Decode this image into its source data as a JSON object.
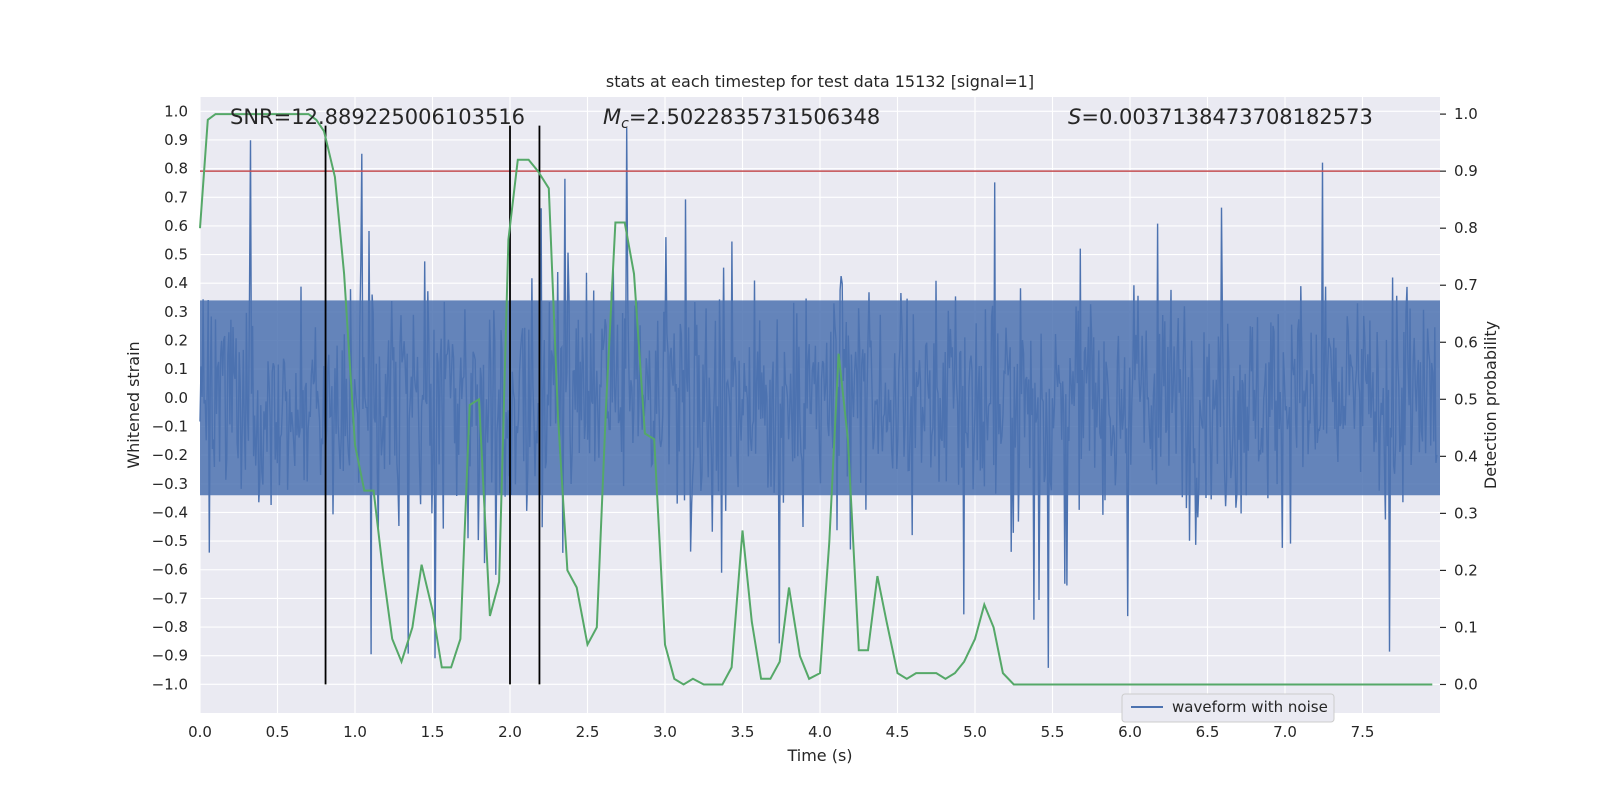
{
  "chart_data": {
    "type": "line",
    "title": "stats at each timestep for test data 15132 [signal=1]",
    "xlabel": "Time (s)",
    "ylabel": "Whitened strain",
    "ylabel_right": "Detection probability",
    "xlim": [
      0.0,
      8.0
    ],
    "ylim": [
      -1.1,
      1.05
    ],
    "ylim_right": [
      -0.05,
      1.03
    ],
    "x_ticks": [
      "0.0",
      "0.5",
      "1.0",
      "1.5",
      "2.0",
      "2.5",
      "3.0",
      "3.5",
      "4.0",
      "4.5",
      "5.0",
      "5.5",
      "6.0",
      "6.5",
      "7.0",
      "7.5"
    ],
    "y_ticks": [
      "−1.0",
      "−0.9",
      "−0.8",
      "−0.7",
      "−0.6",
      "−0.5",
      "−0.4",
      "−0.3",
      "−0.2",
      "−0.1",
      "0.0",
      "0.1",
      "0.2",
      "0.3",
      "0.4",
      "0.5",
      "0.6",
      "0.7",
      "0.8",
      "0.9",
      "1.0"
    ],
    "y_ticks_right": [
      "0.0",
      "0.1",
      "0.2",
      "0.3",
      "0.4",
      "0.5",
      "0.6",
      "0.7",
      "0.8",
      "0.9",
      "1.0"
    ],
    "grid": true,
    "annotations": {
      "snr": "SNR=12.889225006103516",
      "mc": "=2.5022835731506348",
      "mc_symbol": "M",
      "mc_subscript": "c",
      "s": "=0.0037138473708182573",
      "s_symbol": "S"
    },
    "threshold_right": 0.9,
    "vertical_lines_x": [
      0.81,
      2.0,
      2.19
    ],
    "vertical_lines_yrange": [
      -1.0,
      0.95
    ],
    "legend": {
      "label": "waveform with noise",
      "position": "lower-center-right"
    },
    "series": [
      {
        "name": "waveform with noise",
        "description": "dense whitened-strain noise trace sampled over 0–8 s, typical amplitude ±0.35 with occasional spikes to ±0.95",
        "typical_amplitude": 0.35,
        "max_amplitude": 0.95,
        "color": "#4c72b0"
      },
      {
        "name": "detection probability",
        "axis": "right",
        "color": "#55a868",
        "x": [
          0.0,
          0.05,
          0.1,
          0.2,
          0.3,
          0.4,
          0.5,
          0.6,
          0.65,
          0.7,
          0.75,
          0.8,
          0.87,
          0.93,
          1.0,
          1.06,
          1.12,
          1.18,
          1.24,
          1.3,
          1.37,
          1.43,
          1.5,
          1.56,
          1.62,
          1.68,
          1.74,
          1.8,
          1.87,
          1.93,
          1.99,
          2.05,
          2.12,
          2.18,
          2.25,
          2.31,
          2.37,
          2.43,
          2.5,
          2.56,
          2.62,
          2.68,
          2.74,
          2.8,
          2.87,
          2.93,
          3.0,
          3.06,
          3.12,
          3.18,
          3.25,
          3.31,
          3.37,
          3.43,
          3.5,
          3.56,
          3.62,
          3.68,
          3.74,
          3.8,
          3.87,
          3.93,
          4.0,
          4.06,
          4.12,
          4.18,
          4.25,
          4.31,
          4.37,
          4.43,
          4.5,
          4.56,
          4.62,
          4.68,
          4.75,
          4.81,
          4.87,
          4.93,
          5.0,
          5.06,
          5.12,
          5.18,
          5.25,
          5.31,
          5.37,
          5.5,
          6.0,
          6.5,
          7.0,
          7.2,
          7.4,
          7.5,
          7.6,
          7.7,
          7.8,
          7.95
        ],
        "values": [
          0.8,
          0.99,
          1.0,
          1.0,
          1.0,
          1.0,
          1.0,
          1.0,
          1.0,
          1.0,
          0.99,
          0.97,
          0.89,
          0.72,
          0.42,
          0.34,
          0.34,
          0.2,
          0.08,
          0.04,
          0.1,
          0.21,
          0.13,
          0.03,
          0.03,
          0.08,
          0.49,
          0.5,
          0.12,
          0.18,
          0.78,
          0.92,
          0.92,
          0.9,
          0.87,
          0.47,
          0.2,
          0.17,
          0.07,
          0.1,
          0.49,
          0.81,
          0.81,
          0.72,
          0.44,
          0.43,
          0.07,
          0.01,
          0.0,
          0.01,
          0.0,
          0.0,
          0.0,
          0.03,
          0.27,
          0.11,
          0.01,
          0.01,
          0.04,
          0.17,
          0.05,
          0.01,
          0.02,
          0.25,
          0.58,
          0.43,
          0.06,
          0.06,
          0.19,
          0.11,
          0.02,
          0.01,
          0.02,
          0.02,
          0.02,
          0.01,
          0.02,
          0.04,
          0.08,
          0.14,
          0.1,
          0.02,
          0.0,
          0.0,
          0.0,
          0.0,
          0.0,
          0.0,
          0.0,
          0.0,
          0.0,
          0.0,
          0.0,
          0.0,
          0.0,
          0.0
        ]
      }
    ]
  }
}
